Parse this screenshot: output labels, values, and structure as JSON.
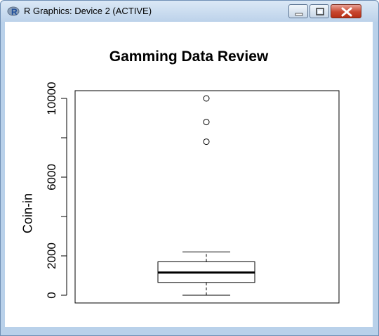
{
  "window": {
    "title": "R Graphics: Device 2 (ACTIVE)",
    "icon": "r-logo-icon",
    "controls": [
      "minimize-icon",
      "maximize-icon",
      "close-icon"
    ]
  },
  "colors": {
    "title_bar": "#c9dcf0",
    "close_button": "#c8472f",
    "plot_ink": "#000000"
  },
  "chart_data": {
    "type": "boxplot",
    "title": "Gamming Data Review",
    "xlabel": "",
    "ylabel": "Coin-in",
    "ylim": [
      0,
      10300
    ],
    "yticks": [
      0,
      2000,
      6000,
      10000
    ],
    "ytick_marks": [
      0,
      2000,
      4000,
      6000,
      8000,
      10000
    ],
    "box": {
      "min": 0,
      "q1": 650,
      "median": 1150,
      "q3": 1700,
      "max": 2200
    },
    "outliers": [
      7800,
      8800,
      10000
    ]
  }
}
